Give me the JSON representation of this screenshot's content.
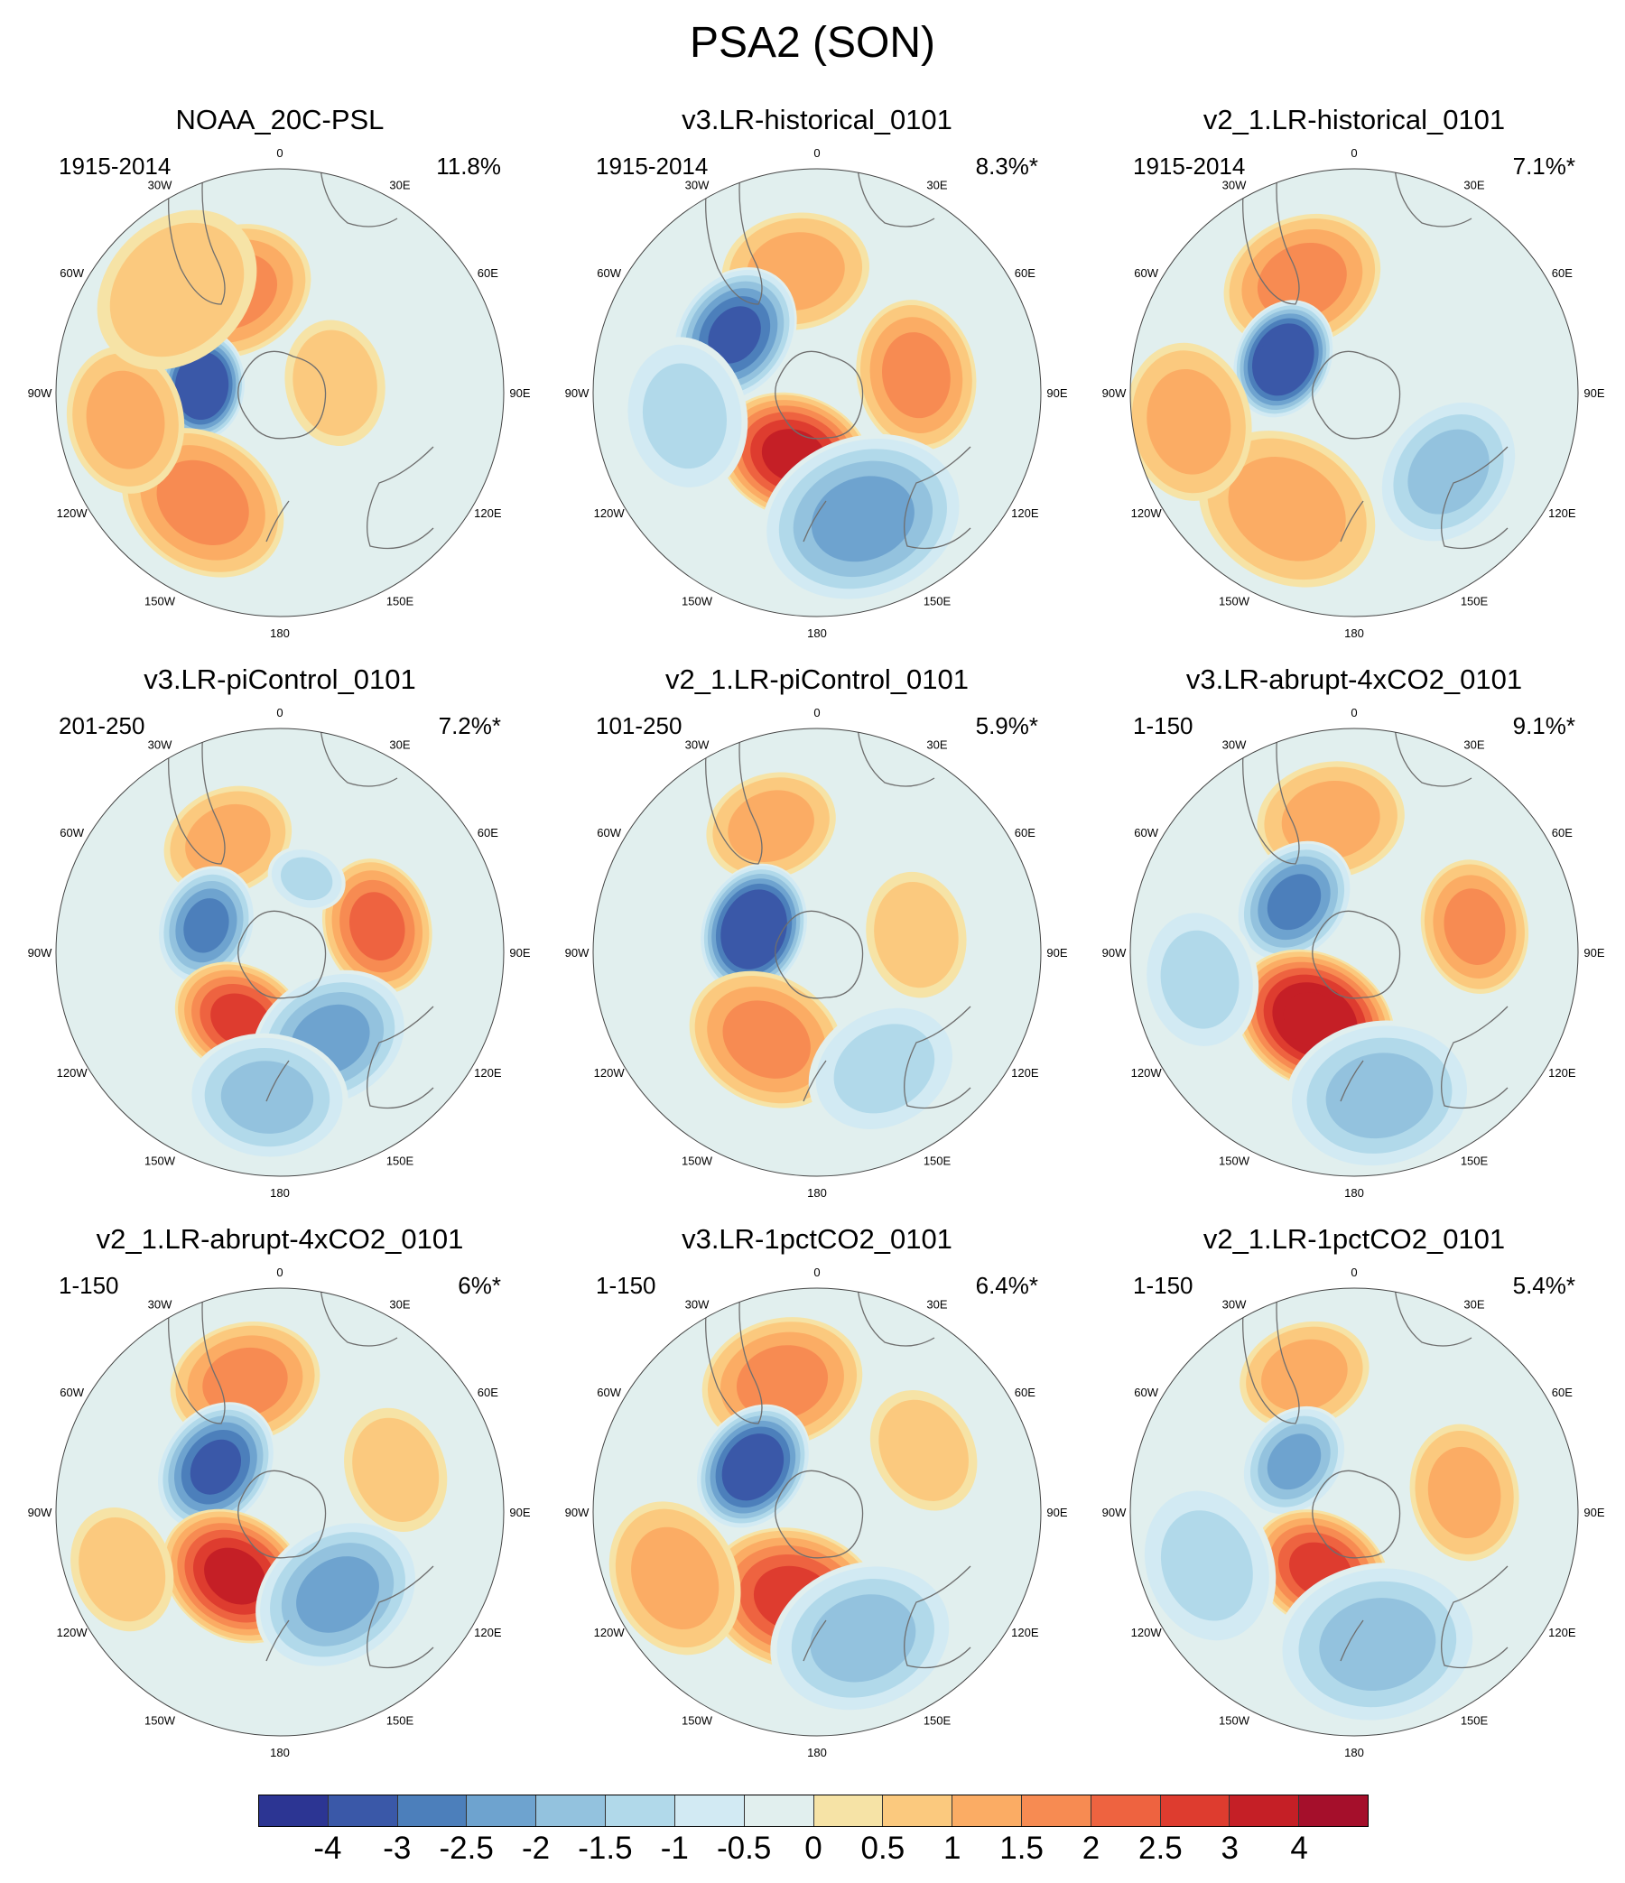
{
  "title": "PSA2 (SON)",
  "longitude_labels": [
    "0",
    "30E",
    "60E",
    "90E",
    "120E",
    "150E",
    "180",
    "150W",
    "120W",
    "90W",
    "60W",
    "30W"
  ],
  "panels": [
    {
      "title": "NOAA_20C-PSL",
      "period": "1915-2014",
      "variance": "11.8%",
      "blobs": [
        {
          "lon": -25,
          "r": 0.5,
          "size": 0.3,
          "val": 1.5
        },
        {
          "lon": -85,
          "r": 0.35,
          "size": 0.2,
          "val": -4.0
        },
        {
          "lon": -145,
          "r": 0.6,
          "size": 0.32,
          "val": 1.5
        },
        {
          "lon": -100,
          "r": 0.7,
          "size": 0.28,
          "val": 1.0
        },
        {
          "lon": 80,
          "r": 0.25,
          "size": 0.25,
          "val": 0.5
        },
        {
          "lon": -45,
          "r": 0.65,
          "size": 0.35,
          "val": 0.5
        }
      ]
    },
    {
      "title": "v3.LR-historical_0101",
      "period": "1915-2014",
      "variance": "8.3%*",
      "blobs": [
        {
          "lon": -10,
          "r": 0.55,
          "size": 0.28,
          "val": 1.0
        },
        {
          "lon": -55,
          "r": 0.45,
          "size": 0.26,
          "val": -3.0
        },
        {
          "lon": -160,
          "r": 0.3,
          "size": 0.28,
          "val": 3.0
        },
        {
          "lon": 80,
          "r": 0.45,
          "size": 0.28,
          "val": 1.5
        },
        {
          "lon": 160,
          "r": 0.6,
          "size": 0.38,
          "val": -2.0
        },
        {
          "lon": -100,
          "r": 0.6,
          "size": 0.3,
          "val": -1.0
        }
      ]
    },
    {
      "title": "v2_1.LR-historical_0101",
      "period": "1915-2014",
      "variance": "7.1%*",
      "blobs": [
        {
          "lon": -25,
          "r": 0.55,
          "size": 0.3,
          "val": 1.5
        },
        {
          "lon": -65,
          "r": 0.35,
          "size": 0.22,
          "val": -4.0
        },
        {
          "lon": -150,
          "r": 0.6,
          "size": 0.35,
          "val": 1.0
        },
        {
          "lon": 130,
          "r": 0.55,
          "size": 0.3,
          "val": -1.5
        },
        {
          "lon": -100,
          "r": 0.75,
          "size": 0.3,
          "val": 1.0
        }
      ]
    },
    {
      "title": "v3.LR-piControl_0101",
      "period": "201-250",
      "variance": "7.2%*",
      "blobs": [
        {
          "lon": -25,
          "r": 0.55,
          "size": 0.25,
          "val": 1.0
        },
        {
          "lon": -70,
          "r": 0.35,
          "size": 0.22,
          "val": -2.5
        },
        {
          "lon": -150,
          "r": 0.35,
          "size": 0.25,
          "val": 2.5
        },
        {
          "lon": 75,
          "r": 0.45,
          "size": 0.25,
          "val": 2.0
        },
        {
          "lon": 150,
          "r": 0.45,
          "size": 0.3,
          "val": -2.0
        },
        {
          "lon": -175,
          "r": 0.65,
          "size": 0.3,
          "val": -1.5
        },
        {
          "lon": 20,
          "r": 0.35,
          "size": 0.15,
          "val": -1.0
        }
      ]
    },
    {
      "title": "v2_1.LR-piControl_0101",
      "period": "101-250",
      "variance": "5.9%*",
      "blobs": [
        {
          "lon": -20,
          "r": 0.6,
          "size": 0.25,
          "val": 1.0
        },
        {
          "lon": -70,
          "r": 0.3,
          "size": 0.24,
          "val": -4.0
        },
        {
          "lon": -150,
          "r": 0.45,
          "size": 0.3,
          "val": 1.5
        },
        {
          "lon": 80,
          "r": 0.45,
          "size": 0.25,
          "val": 0.5
        },
        {
          "lon": 150,
          "r": 0.6,
          "size": 0.3,
          "val": -1.0
        }
      ]
    },
    {
      "title": "v3.LR-abrupt-4xCO2_0101",
      "period": "1-150",
      "variance": "9.1%*",
      "blobs": [
        {
          "lon": -10,
          "r": 0.6,
          "size": 0.28,
          "val": 1.0
        },
        {
          "lon": -50,
          "r": 0.35,
          "size": 0.24,
          "val": -2.5
        },
        {
          "lon": -150,
          "r": 0.35,
          "size": 0.3,
          "val": 3.5
        },
        {
          "lon": 78,
          "r": 0.55,
          "size": 0.25,
          "val": 1.5
        },
        {
          "lon": 170,
          "r": 0.65,
          "size": 0.35,
          "val": -1.5
        },
        {
          "lon": -100,
          "r": 0.7,
          "size": 0.28,
          "val": -1.0
        }
      ]
    },
    {
      "title": "v2_1.LR-abrupt-4xCO2_0101",
      "period": "1-150",
      "variance": "6%*",
      "blobs": [
        {
          "lon": -15,
          "r": 0.6,
          "size": 0.28,
          "val": 1.5
        },
        {
          "lon": -55,
          "r": 0.35,
          "size": 0.25,
          "val": -3.0
        },
        {
          "lon": -145,
          "r": 0.35,
          "size": 0.28,
          "val": 3.0
        },
        {
          "lon": 145,
          "r": 0.45,
          "size": 0.32,
          "val": -2.0
        },
        {
          "lon": 70,
          "r": 0.55,
          "size": 0.25,
          "val": 0.5
        },
        {
          "lon": -110,
          "r": 0.75,
          "size": 0.25,
          "val": 0.5
        }
      ]
    },
    {
      "title": "v3.LR-1pctCO2_0101",
      "period": "1-150",
      "variance": "6.4%*",
      "blobs": [
        {
          "lon": -15,
          "r": 0.6,
          "size": 0.3,
          "val": 1.5
        },
        {
          "lon": -55,
          "r": 0.35,
          "size": 0.24,
          "val": -3.5
        },
        {
          "lon": -165,
          "r": 0.4,
          "size": 0.32,
          "val": 2.5
        },
        {
          "lon": 160,
          "r": 0.6,
          "size": 0.35,
          "val": -1.5
        },
        {
          "lon": -115,
          "r": 0.7,
          "size": 0.3,
          "val": 1.0
        },
        {
          "lon": 60,
          "r": 0.55,
          "size": 0.25,
          "val": 0.5
        }
      ]
    },
    {
      "title": "v2_1.LR-1pctCO2_0101",
      "period": "1-150",
      "variance": "5.4%*",
      "blobs": [
        {
          "lon": -20,
          "r": 0.65,
          "size": 0.25,
          "val": 1.0
        },
        {
          "lon": -50,
          "r": 0.35,
          "size": 0.22,
          "val": -2.0
        },
        {
          "lon": -150,
          "r": 0.3,
          "size": 0.26,
          "val": 2.5
        },
        {
          "lon": 80,
          "r": 0.5,
          "size": 0.26,
          "val": 1.0
        },
        {
          "lon": 170,
          "r": 0.6,
          "size": 0.38,
          "val": -1.5
        },
        {
          "lon": -110,
          "r": 0.7,
          "size": 0.32,
          "val": -1.0
        }
      ]
    }
  ],
  "colorbar": {
    "colors": [
      "#2c3593",
      "#3a58a8",
      "#4c7fbb",
      "#6ea3cf",
      "#93c2de",
      "#b1d9ea",
      "#d2eaf3",
      "#e1efee",
      "#f6e3a6",
      "#fbc97e",
      "#fbac64",
      "#f78b52",
      "#ee6340",
      "#de3c2f",
      "#c51f26",
      "#a50f2b"
    ],
    "ticks": [
      "-4",
      "-3",
      "-2.5",
      "-2",
      "-1.5",
      "-1",
      "-0.5",
      "0",
      "0.5",
      "1",
      "1.5",
      "2",
      "2.5",
      "3",
      "4"
    ]
  }
}
